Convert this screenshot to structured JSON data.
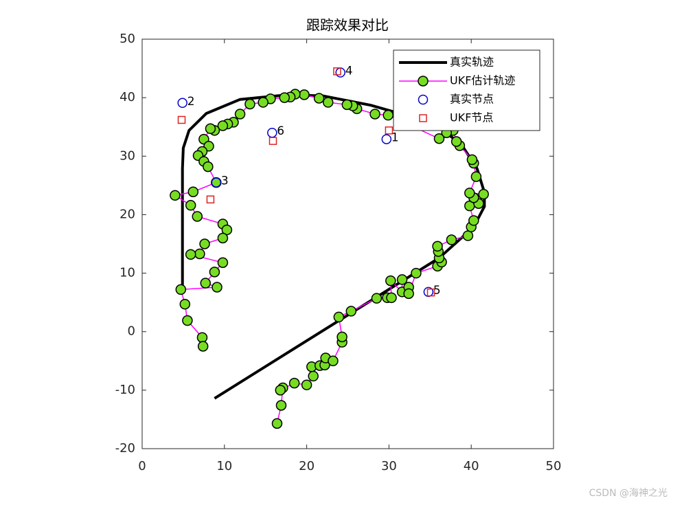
{
  "chart_data": {
    "type": "line",
    "title": "跟踪效果对比",
    "xlim": [
      0,
      50
    ],
    "ylim": [
      -20,
      50
    ],
    "xticks": [
      0,
      10,
      20,
      30,
      40,
      50
    ],
    "yticks": [
      -20,
      -10,
      0,
      10,
      20,
      30,
      40,
      50
    ],
    "legend": "northeast",
    "series": [
      {
        "name": "真实轨迹",
        "color": "#000000",
        "line": true,
        "marker": "none",
        "x": [
          8.8,
          36.1,
          40.3,
          41.6,
          41.6,
          40.7,
          38.8,
          36.1,
          32.8,
          27.8,
          22.0,
          17.8,
          11.9,
          7.8,
          5.7,
          5.0,
          4.9,
          4.9
        ],
        "y": [
          -11.4,
          12.6,
          17.9,
          21.4,
          23.8,
          27.9,
          32.0,
          34.9,
          36.7,
          38.7,
          40.3,
          40.5,
          39.7,
          37.3,
          34.4,
          31.4,
          27.9,
          7.4
        ]
      },
      {
        "name": "UKF估计轨迹",
        "color": "#ff00ff",
        "line": true,
        "marker": "circle",
        "marker_face": "#77dd22",
        "marker_edge": "#000000",
        "x": [
          16.4,
          16.9,
          17.1,
          16.8,
          18.5,
          20.0,
          20.8,
          20.6,
          21.6,
          22.2,
          22.3,
          23.2,
          24.3,
          24.3,
          23.9,
          25.4,
          28.5,
          29.8,
          30.3,
          30.2,
          31.6,
          31.6,
          32.4,
          32.4,
          33.3,
          35.9,
          36.4,
          36.1,
          36.0,
          35.9,
          37.6,
          39.6,
          40.0,
          40.3,
          39.8,
          40.9,
          40.3,
          41.5,
          39.8,
          40.6,
          40.3,
          40.1,
          38.6,
          38.2,
          37.8,
          37.0,
          36.1,
          29.9,
          28.3,
          26.1,
          25.6,
          24.9,
          22.6,
          21.5,
          19.7,
          18.6,
          18.0,
          17.3,
          15.6,
          14.7,
          13.1,
          11.9,
          11.1,
          10.4,
          9.8,
          8.8,
          8.3,
          7.5,
          8.1,
          7.3,
          6.8,
          7.5,
          8.0,
          9.0,
          6.2,
          4.0,
          5.9,
          6.7,
          9.8,
          10.3,
          9.8,
          7.6,
          7.0,
          5.9,
          9.8,
          8.8,
          7.7,
          9.1,
          4.7,
          5.2,
          5.5,
          7.3,
          7.4
        ],
        "y": [
          -15.7,
          -12.6,
          -9.6,
          -10.0,
          -8.8,
          -9.1,
          -7.6,
          -6.0,
          -5.8,
          -5.7,
          -4.5,
          -5.0,
          -1.8,
          -0.9,
          2.5,
          3.5,
          5.7,
          5.8,
          5.8,
          8.7,
          6.8,
          8.9,
          7.6,
          6.5,
          10.0,
          11.2,
          11.9,
          12.6,
          13.7,
          14.6,
          15.7,
          16.4,
          17.9,
          19.0,
          21.5,
          21.9,
          22.9,
          23.5,
          23.7,
          26.5,
          28.8,
          29.4,
          31.8,
          32.5,
          34.4,
          34.0,
          33.0,
          37.0,
          37.2,
          38.1,
          38.6,
          38.8,
          39.2,
          39.9,
          40.5,
          40.6,
          40.1,
          40.0,
          39.8,
          39.2,
          38.9,
          37.2,
          35.8,
          35.5,
          35.2,
          34.4,
          34.7,
          32.9,
          31.7,
          30.8,
          30.1,
          29.1,
          28.2,
          25.5,
          23.9,
          23.3,
          21.6,
          19.7,
          18.4,
          17.4,
          16.0,
          15.0,
          13.3,
          13.2,
          11.8,
          10.2,
          8.3,
          7.6,
          7.2,
          4.7,
          1.9,
          -1.0,
          -2.5
        ]
      },
      {
        "name": "真实节点",
        "color": "#0000cc",
        "line": false,
        "marker": "circle",
        "marker_face": "none",
        "marker_edge": "#0000cc",
        "x": [
          29.7,
          4.9,
          9.0,
          24.1,
          34.8,
          15.8
        ],
        "y": [
          32.9,
          39.1,
          25.5,
          44.3,
          6.8,
          34.0
        ],
        "labels": [
          "1",
          "2",
          "3",
          "4",
          "5",
          "6"
        ]
      },
      {
        "name": "UKF节点",
        "color": "#dd2222",
        "line": false,
        "marker": "square",
        "marker_face": "none",
        "marker_edge": "#dd2222",
        "x": [
          30.0,
          4.8,
          8.3,
          23.7,
          35.1,
          15.9
        ],
        "y": [
          34.4,
          36.2,
          22.6,
          44.5,
          6.7,
          32.6
        ]
      }
    ]
  },
  "watermark": "CSDN @海神之光"
}
